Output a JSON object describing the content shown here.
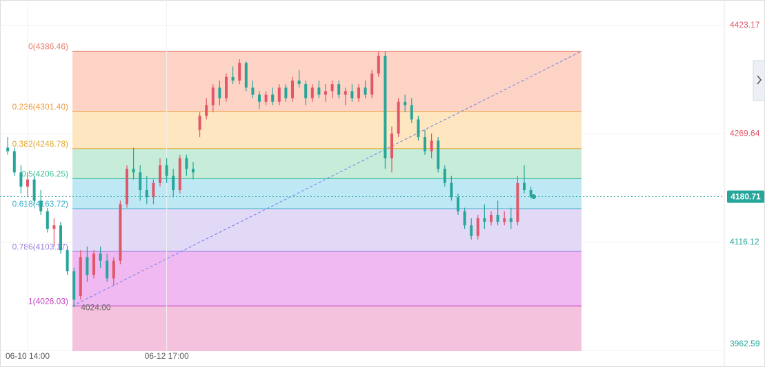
{
  "chart_data": {
    "type": "candlestick",
    "categories": [
      null,
      null,
      null,
      "06-10 14:00",
      null,
      null,
      null,
      null,
      null,
      null,
      null,
      null,
      null,
      null,
      null,
      null,
      null,
      null,
      null,
      null,
      null,
      null,
      null,
      null,
      "06-12 17:00",
      null,
      null,
      null,
      null,
      null,
      null,
      null,
      null,
      null,
      null,
      null,
      null,
      null,
      null,
      null,
      null,
      null,
      null,
      null,
      null,
      null,
      null,
      null,
      null,
      null,
      null,
      null,
      null,
      null,
      null,
      null,
      null,
      null,
      null,
      null,
      null,
      null,
      null,
      null,
      null,
      null,
      null,
      null,
      null,
      null,
      null,
      null,
      null,
      null,
      null,
      null,
      null,
      null,
      null,
      null
    ],
    "candles": [
      [
        4250,
        4265,
        4240,
        4245
      ],
      [
        4245,
        4250,
        4210,
        4215
      ],
      [
        4215,
        4225,
        4185,
        4195
      ],
      [
        4195,
        4215,
        4180,
        4205
      ],
      [
        4205,
        4210,
        4170,
        4175
      ],
      [
        4175,
        4190,
        4155,
        4160
      ],
      [
        4160,
        4165,
        4130,
        4135
      ],
      [
        4135,
        4150,
        4110,
        4140
      ],
      [
        4140,
        4145,
        4100,
        4105
      ],
      [
        4105,
        4110,
        4070,
        4075
      ],
      [
        4075,
        4080,
        4024,
        4035
      ],
      [
        4040,
        4105,
        4035,
        4095
      ],
      [
        4095,
        4110,
        4060,
        4070
      ],
      [
        4070,
        4105,
        4065,
        4100
      ],
      [
        4100,
        4110,
        4080,
        4090
      ],
      [
        4090,
        4100,
        4060,
        4065
      ],
      [
        4065,
        4095,
        4055,
        4090
      ],
      [
        4090,
        4175,
        4085,
        4170
      ],
      [
        4170,
        4225,
        4165,
        4220
      ],
      [
        4220,
        4250,
        4205,
        4215
      ],
      [
        4215,
        4225,
        4175,
        4190
      ],
      [
        4190,
        4210,
        4170,
        4180
      ],
      [
        4180,
        4205,
        4170,
        4200
      ],
      [
        4200,
        4235,
        4195,
        4225
      ],
      [
        4225,
        4235,
        4200,
        4210
      ],
      [
        4210,
        4220,
        4180,
        4190
      ],
      [
        4190,
        4240,
        4185,
        4235
      ],
      [
        4235,
        4240,
        4210,
        4220
      ],
      [
        4220,
        4230,
        4205,
        4215
      ],
      [
        4275,
        4300,
        4265,
        4295
      ],
      [
        4295,
        4320,
        4290,
        4310
      ],
      [
        4310,
        4340,
        4300,
        4335
      ],
      [
        4335,
        4345,
        4310,
        4320
      ],
      [
        4320,
        4355,
        4315,
        4350
      ],
      [
        4350,
        4365,
        4340,
        4345
      ],
      [
        4345,
        4375,
        4340,
        4370
      ],
      [
        4370,
        4372,
        4330,
        4335
      ],
      [
        4335,
        4345,
        4320,
        4325
      ],
      [
        4325,
        4330,
        4305,
        4315
      ],
      [
        4315,
        4330,
        4310,
        4325
      ],
      [
        4325,
        4335,
        4310,
        4315
      ],
      [
        4315,
        4340,
        4310,
        4335
      ],
      [
        4335,
        4340,
        4315,
        4320
      ],
      [
        4320,
        4350,
        4315,
        4345
      ],
      [
        4345,
        4360,
        4335,
        4340
      ],
      [
        4340,
        4345,
        4310,
        4320
      ],
      [
        4320,
        4340,
        4315,
        4335
      ],
      [
        4335,
        4345,
        4320,
        4325
      ],
      [
        4325,
        4340,
        4315,
        4330
      ],
      [
        4330,
        4345,
        4320,
        4340
      ],
      [
        4340,
        4345,
        4320,
        4325
      ],
      [
        4325,
        4335,
        4310,
        4330
      ],
      [
        4330,
        4340,
        4315,
        4320
      ],
      [
        4320,
        4340,
        4315,
        4335
      ],
      [
        4335,
        4345,
        4320,
        4325
      ],
      [
        4325,
        4360,
        4320,
        4355
      ],
      [
        4355,
        4386.46,
        4350,
        4380
      ],
      [
        4380,
        4386,
        4220,
        4235
      ],
      [
        4235,
        4280,
        4215,
        4270
      ],
      [
        4270,
        4320,
        4265,
        4315
      ],
      [
        4315,
        4325,
        4300,
        4310
      ],
      [
        4310,
        4320,
        4285,
        4290
      ],
      [
        4290,
        4295,
        4260,
        4265
      ],
      [
        4265,
        4275,
        4240,
        4245
      ],
      [
        4245,
        4270,
        4235,
        4260
      ],
      [
        4260,
        4265,
        4215,
        4220
      ],
      [
        4220,
        4225,
        4195,
        4200
      ],
      [
        4200,
        4210,
        4175,
        4180
      ],
      [
        4180,
        4185,
        4155,
        4160
      ],
      [
        4160,
        4165,
        4135,
        4140
      ],
      [
        4140,
        4150,
        4120,
        4125
      ],
      [
        4125,
        4155,
        4120,
        4150
      ],
      [
        4150,
        4170,
        4135,
        4145
      ],
      [
        4145,
        4160,
        4140,
        4155
      ],
      [
        4155,
        4175,
        4140,
        4145
      ],
      [
        4145,
        4160,
        4140,
        4150
      ],
      [
        4150,
        4165,
        4135,
        4145
      ],
      [
        4145,
        4210,
        4140,
        4200
      ],
      [
        4200,
        4225,
        4185,
        4190
      ],
      [
        4190,
        4195,
        4178,
        4180.71
      ]
    ],
    "up_color": "#e2566a",
    "down_color": "#26a69a",
    "ylim": [
      3962,
      4459
    ],
    "yticks": [
      4423.17,
      4269.64,
      4116.12,
      3962.59
    ],
    "grid": true,
    "current_price": 4180.71,
    "low_annotation": {
      "value": 4024,
      "label": "4024.00"
    },
    "fib_levels": [
      {
        "label": "0(4386.46)",
        "value": 4386.46,
        "color": "#e8806a",
        "fill": "#fdd3c6"
      },
      {
        "label": "0.236(4301.40)",
        "value": 4301.4,
        "color": "#ef9a3c",
        "fill": "#fde6c0"
      },
      {
        "label": "0.382(4248.78)",
        "value": 4248.78,
        "color": "#e5a82a",
        "fill": "#c7ecd9"
      },
      {
        "label": "0.5(4206.25)",
        "value": 4206.25,
        "color": "#3cbf98",
        "fill": "#bfe8f5"
      },
      {
        "label": "0.618(4163.72)",
        "value": 4163.72,
        "color": "#3bb0c9",
        "fill": "#e1d9f6"
      },
      {
        "label": "0.786(4103.17)",
        "value": 4103.17,
        "color": "#9b7fe0",
        "fill": "#f0b9f1"
      },
      {
        "label": "1(4026.03)",
        "value": 4026.03,
        "color": "#c23fc2",
        "fill": "#f5c2dd"
      }
    ]
  }
}
